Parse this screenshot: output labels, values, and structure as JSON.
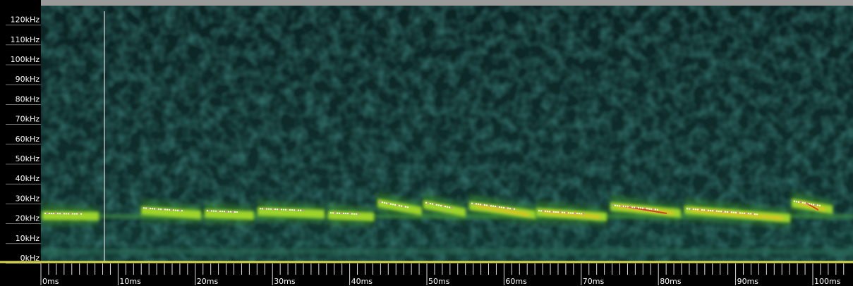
{
  "y_axis": {
    "labels": [
      "0kHz",
      "10kHz",
      "20kHz",
      "30kHz",
      "40kHz",
      "50kHz",
      "60kHz",
      "70kHz",
      "80kHz",
      "90kHz",
      "100kHz",
      "110kHz",
      "120kHz"
    ]
  },
  "x_axis": {
    "labels": [
      "0ms",
      "10ms",
      "20ms",
      "30ms",
      "40ms",
      "50ms",
      "60ms",
      "70ms",
      "80ms",
      "90ms",
      "100ms"
    ]
  }
}
